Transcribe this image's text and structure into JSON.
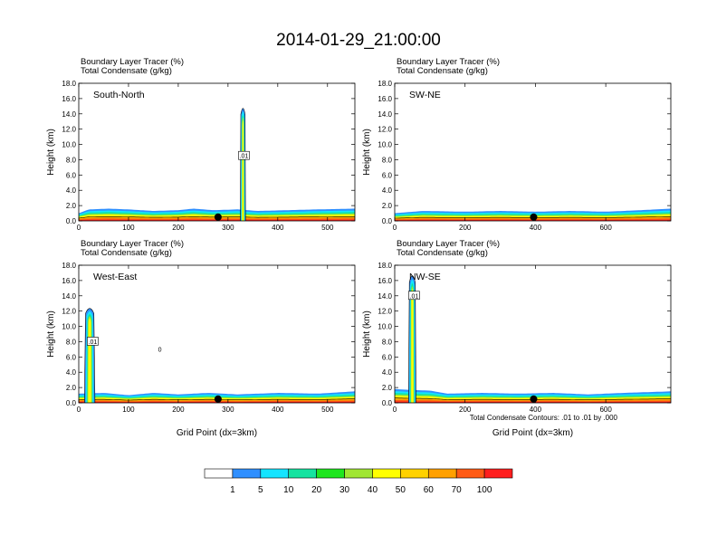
{
  "figure": {
    "title": "2014-01-29_21:00:00",
    "contour_note": "Total Condensate Contours: .01 to .01 by .000"
  },
  "colors": {
    "fill_scale": [
      "#ffffff",
      "#2f8fff",
      "#14e4ff",
      "#14e3a0",
      "#1ee61e",
      "#a0e632",
      "#ffff00",
      "#ffd200",
      "#ffa000",
      "#ff5a14",
      "#ff1e1e"
    ],
    "contour_line": "#000000"
  },
  "colorbar": {
    "labels": [
      "1",
      "5",
      "10",
      "20",
      "30",
      "40",
      "50",
      "60",
      "70",
      "100"
    ]
  },
  "chart_data": [
    {
      "type": "heatmap",
      "panel": "South-North",
      "header_lines": [
        "Boundary Layer Tracer    (%)",
        "Total Condensate    (g/kg)"
      ],
      "xlabel": "",
      "ylabel": "Height (km)",
      "xlim": [
        0,
        555
      ],
      "ylim": [
        0,
        18
      ],
      "xticks": [
        "0",
        "100",
        "200",
        "300",
        "400",
        "500"
      ],
      "yticks": [
        "0.0",
        "2.0",
        "4.0",
        "6.0",
        "8.0",
        "10.0",
        "12.0",
        "14.0",
        "16.0",
        "18.0"
      ],
      "marker_x": 280,
      "pbl_top_km": [
        [
          0,
          1.0
        ],
        [
          20,
          1.5
        ],
        [
          60,
          1.6
        ],
        [
          100,
          1.5
        ],
        [
          150,
          1.3
        ],
        [
          200,
          1.4
        ],
        [
          230,
          1.6
        ],
        [
          270,
          1.4
        ],
        [
          320,
          1.5
        ],
        [
          360,
          1.3
        ],
        [
          420,
          1.4
        ],
        [
          480,
          1.5
        ],
        [
          555,
          1.6
        ]
      ],
      "plumes": [
        {
          "x_center": 330,
          "half_width": 5,
          "top_km": 15.5
        }
      ],
      "contour_labels": [
        {
          "x": 332,
          "y_km": 8.5,
          "text": ".01"
        }
      ]
    },
    {
      "type": "heatmap",
      "panel": "SW-NE",
      "header_lines": [
        "Boundary Layer Tracer    (%)",
        "Total Condensate    (g/kg)"
      ],
      "xlabel": "",
      "ylabel": "Height (km)",
      "xlim": [
        0,
        785
      ],
      "ylim": [
        0,
        18
      ],
      "xticks": [
        "0",
        "200",
        "400",
        "600"
      ],
      "yticks": [
        "0.0",
        "2.0",
        "4.0",
        "6.0",
        "8.0",
        "10.0",
        "12.0",
        "14.0",
        "16.0",
        "18.0"
      ],
      "marker_x": 395,
      "pbl_top_km": [
        [
          0,
          1.0
        ],
        [
          80,
          1.3
        ],
        [
          200,
          1.2
        ],
        [
          300,
          1.3
        ],
        [
          400,
          1.2
        ],
        [
          500,
          1.3
        ],
        [
          600,
          1.2
        ],
        [
          700,
          1.4
        ],
        [
          785,
          1.6
        ]
      ],
      "plumes": [],
      "contour_labels": []
    },
    {
      "type": "heatmap",
      "panel": "West-East",
      "header_lines": [
        "Boundary Layer Tracer    (%)",
        "Total Condensate    (g/kg)"
      ],
      "xlabel": "Grid Point (dx=3km)",
      "ylabel": "Height (km)",
      "xlim": [
        0,
        555
      ],
      "ylim": [
        0,
        18
      ],
      "xticks": [
        "0",
        "100",
        "200",
        "300",
        "400",
        "500"
      ],
      "yticks": [
        "0.0",
        "2.0",
        "4.0",
        "6.0",
        "8.0",
        "10.0",
        "12.0",
        "14.0",
        "16.0",
        "18.0"
      ],
      "marker_x": 280,
      "pbl_top_km": [
        [
          0,
          1.2
        ],
        [
          50,
          1.3
        ],
        [
          100,
          1.0
        ],
        [
          150,
          1.3
        ],
        [
          200,
          1.1
        ],
        [
          260,
          1.3
        ],
        [
          320,
          1.1
        ],
        [
          400,
          1.3
        ],
        [
          480,
          1.2
        ],
        [
          555,
          1.5
        ]
      ],
      "plumes": [
        {
          "x_center": 22,
          "half_width": 10,
          "top_km": 13.0
        }
      ],
      "contour_labels": [
        {
          "x": 28,
          "y_km": 8.0,
          "text": ".01"
        },
        {
          "x": 163,
          "y_km": 7.0,
          "text": "0"
        }
      ]
    },
    {
      "type": "heatmap",
      "panel": "NW-SE",
      "header_lines": [
        "Boundary Layer Tracer    (%)",
        "Total Condensate    (g/kg)"
      ],
      "xlabel": "Grid Point (dx=3km)",
      "ylabel": "Height (km)",
      "xlim": [
        0,
        785
      ],
      "ylim": [
        0,
        18
      ],
      "xticks": [
        "0",
        "200",
        "400",
        "600"
      ],
      "yticks": [
        "0.0",
        "2.0",
        "4.0",
        "6.0",
        "8.0",
        "10.0",
        "12.0",
        "14.0",
        "16.0",
        "18.0"
      ],
      "marker_x": 395,
      "pbl_top_km": [
        [
          0,
          1.8
        ],
        [
          40,
          1.7
        ],
        [
          100,
          1.6
        ],
        [
          150,
          1.2
        ],
        [
          250,
          1.3
        ],
        [
          350,
          1.2
        ],
        [
          450,
          1.3
        ],
        [
          550,
          1.1
        ],
        [
          650,
          1.3
        ],
        [
          785,
          1.5
        ]
      ],
      "plumes": [
        {
          "x_center": 50,
          "half_width": 10,
          "top_km": 17.5
        }
      ],
      "contour_labels": [
        {
          "x": 55,
          "y_km": 14.0,
          "text": ".01"
        }
      ]
    }
  ]
}
